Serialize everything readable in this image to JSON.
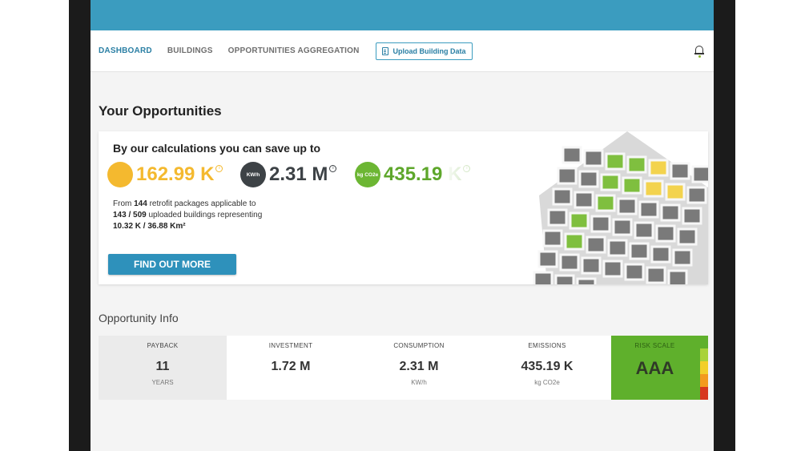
{
  "nav": {
    "items": [
      {
        "label": "DASHBOARD",
        "active": true
      },
      {
        "label": "BUILDINGS",
        "active": false
      },
      {
        "label": "OPPORTUNITIES AGGREGATION",
        "active": false
      }
    ],
    "upload_label": "Upload Building Data"
  },
  "page_title": "Your Opportunities",
  "savings": {
    "heading": "By our calculations you can save up to",
    "metrics": [
      {
        "icon": "coin-icon",
        "badge": "",
        "value": "162.99 K",
        "color": "#f4b92f"
      },
      {
        "icon": "energy-icon",
        "badge": "KW/h",
        "value": "2.31 M",
        "color": "#3d4246"
      },
      {
        "icon": "co2-icon",
        "badge": "kg CO2e",
        "value": "435.19 K",
        "color": "#6cb633"
      }
    ],
    "desc": {
      "p1": "From ",
      "packages": "144",
      "p2": " retrofit packages applicable to ",
      "buildings": "143 / 509",
      "p3": " uploaded buildings representing ",
      "area": "10.32 K / 36.88",
      "area_unit": "Km²"
    },
    "button_label": "FIND OUT MORE"
  },
  "opportunity_info": {
    "title": "Opportunity Info",
    "stats": [
      {
        "label": "PAYBACK",
        "value": "11",
        "unit": "YEARS"
      },
      {
        "label": "INVESTMENT",
        "value": "1.72 M",
        "unit": ""
      },
      {
        "label": "CONSUMPTION",
        "value": "2.31 M",
        "unit": "KW/h"
      },
      {
        "label": "EMISSIONS",
        "value": "435.19 K",
        "unit": "kg CO2e"
      }
    ],
    "risk": {
      "label": "RISK SCALE",
      "value": "AAA",
      "color": "#5fb02c"
    }
  }
}
